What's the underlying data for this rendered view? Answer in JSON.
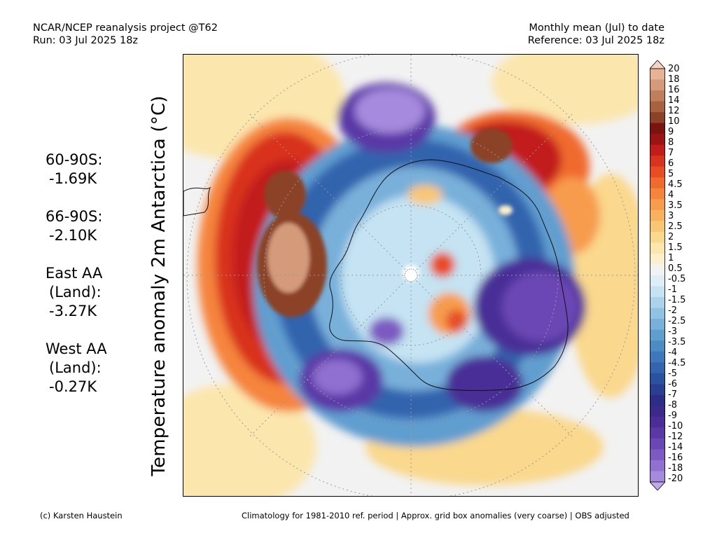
{
  "header": {
    "left_line1": "NCAR/NCEP reanalysis project @T62",
    "left_line2": "Run: 03 Jul 2025 18z",
    "right_line1": "Monthly mean (Jul) to date",
    "right_line2": "Reference: 03 Jul 2025 18z"
  },
  "vertical_title": "Temperature anomaly 2m Antarctica (°C)",
  "stats": [
    {
      "label": "60-90S:",
      "value": "-1.69K"
    },
    {
      "label": "66-90S:",
      "value": "-2.10K"
    },
    {
      "label_lines": [
        "East AA",
        "(Land):"
      ],
      "value": "-3.27K"
    },
    {
      "label_lines": [
        "West AA",
        "(Land):"
      ],
      "value": "-0.27K"
    }
  ],
  "colorbar": {
    "labels": [
      "20",
      "18",
      "16",
      "14",
      "12",
      "10",
      "9",
      "8",
      "7",
      "6",
      "5",
      "4.5",
      "4",
      "3.5",
      "3",
      "2.5",
      "2",
      "1.5",
      "1",
      "0.5",
      "-0.5",
      "-1",
      "-1.5",
      "-2",
      "-2.5",
      "-3",
      "-3.5",
      "-4",
      "-4.5",
      "-5",
      "-6",
      "-7",
      "-8",
      "-9",
      "-10",
      "-12",
      "-14",
      "-16",
      "-18",
      "-20"
    ],
    "colors": [
      "#f4d5c4",
      "#e6b397",
      "#d49a7a",
      "#c07f5c",
      "#a8623f",
      "#8b4226",
      "#7a1410",
      "#9b1414",
      "#c21c1c",
      "#d8331f",
      "#e84c22",
      "#f06a2e",
      "#f5843c",
      "#f79c4e",
      "#f8b25e",
      "#f9c674",
      "#fad88d",
      "#fbe6ad",
      "#fcf0cc",
      "#f2f2f2",
      "#ddeef8",
      "#c5e3f3",
      "#abd3ec",
      "#90c2e3",
      "#78b0da",
      "#619ed0",
      "#4d8bc5",
      "#3e77ba",
      "#3364ad",
      "#2b52a0",
      "#2a3f92",
      "#2c2d86",
      "#3b2a8a",
      "#4a2d97",
      "#5a38a6",
      "#6a47b4",
      "#7c5ac2",
      "#9070d0",
      "#a68ade",
      "#c0a8ea"
    ]
  },
  "footer": {
    "left": "(c) Karsten Haustein",
    "right": "Climatology for 1981-2010 ref. period | Approx. grid box anomalies (very coarse) | OBS adjusted"
  }
}
